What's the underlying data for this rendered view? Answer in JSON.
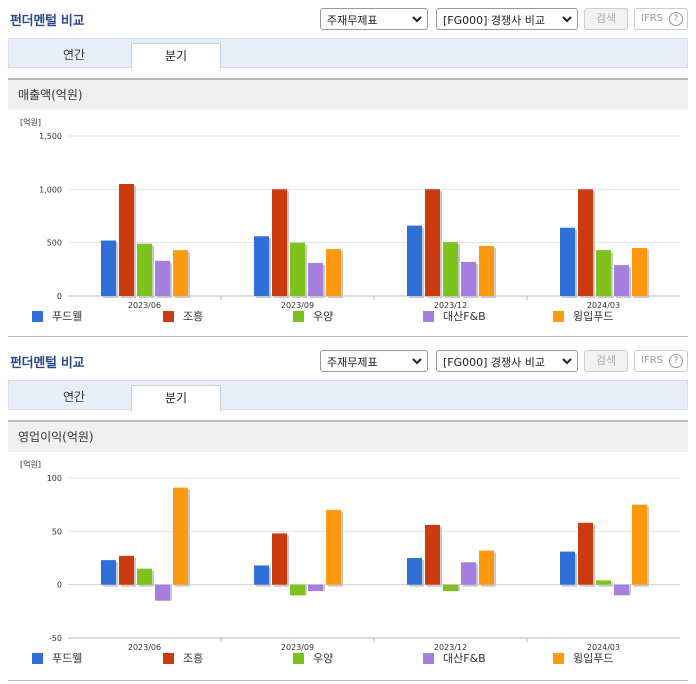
{
  "panels": [
    {
      "title": "펀더멘털 비교",
      "select1": "주재무제표",
      "select2": "[FG000] 경쟁사 비교",
      "search_label": "검색",
      "ifrs_label": "IFRS",
      "ifrs_help": "?",
      "tabs": [
        "연간",
        "분기"
      ],
      "active_tab": "분기",
      "section_title": "매출액(억원)"
    },
    {
      "title": "펀더멘털 비교",
      "select1": "주재무제표",
      "select2": "[FG000] 경쟁사 비교",
      "search_label": "검색",
      "ifrs_label": "IFRS",
      "ifrs_help": "?",
      "tabs": [
        "연간",
        "분기"
      ],
      "active_tab": "분기",
      "section_title": "영업이익(억원)"
    }
  ],
  "chart_data": [
    {
      "type": "bar",
      "title": "매출액(억원)",
      "unit_label": "[억원]",
      "categories": [
        "2023/06",
        "2023/09",
        "2023/12",
        "2024/03"
      ],
      "ylim": [
        0,
        1500
      ],
      "yticks": [
        0,
        500,
        1000,
        1500
      ],
      "ytick_labels": [
        "0",
        "500",
        "1,000",
        "1,500"
      ],
      "grid": true,
      "legend_position": "bottom",
      "series": [
        {
          "name": "푸드웰",
          "color": "#2f6fd8",
          "values": [
            520,
            560,
            660,
            640
          ]
        },
        {
          "name": "조흥",
          "color": "#cc3a10",
          "values": [
            1050,
            1000,
            1000,
            1000
          ]
        },
        {
          "name": "우양",
          "color": "#7ec21e",
          "values": [
            490,
            500,
            505,
            430
          ]
        },
        {
          "name": "대산F&B",
          "color": "#a67ee0",
          "values": [
            330,
            310,
            320,
            290
          ]
        },
        {
          "name": "윙입푸드",
          "color": "#ff9a10",
          "values": [
            430,
            440,
            470,
            450
          ]
        }
      ]
    },
    {
      "type": "bar",
      "title": "영업이익(억원)",
      "unit_label": "[억원]",
      "categories": [
        "2023/06",
        "2023/09",
        "2023/12",
        "2024/03"
      ],
      "ylim": [
        -50,
        100
      ],
      "yticks": [
        -50,
        0,
        50,
        100
      ],
      "ytick_labels": [
        "-50",
        "0",
        "50",
        "100"
      ],
      "grid": true,
      "legend_position": "bottom",
      "series": [
        {
          "name": "푸드웰",
          "color": "#2f6fd8",
          "values": [
            23,
            18,
            25,
            31
          ]
        },
        {
          "name": "조흥",
          "color": "#cc3a10",
          "values": [
            27,
            48,
            56,
            58
          ]
        },
        {
          "name": "우양",
          "color": "#7ec21e",
          "values": [
            15,
            -10,
            -6,
            4
          ]
        },
        {
          "name": "대산F&B",
          "color": "#a67ee0",
          "values": [
            -15,
            -6,
            21,
            -10
          ]
        },
        {
          "name": "윙입푸드",
          "color": "#ff9a10",
          "values": [
            91,
            70,
            32,
            75
          ]
        }
      ]
    }
  ]
}
